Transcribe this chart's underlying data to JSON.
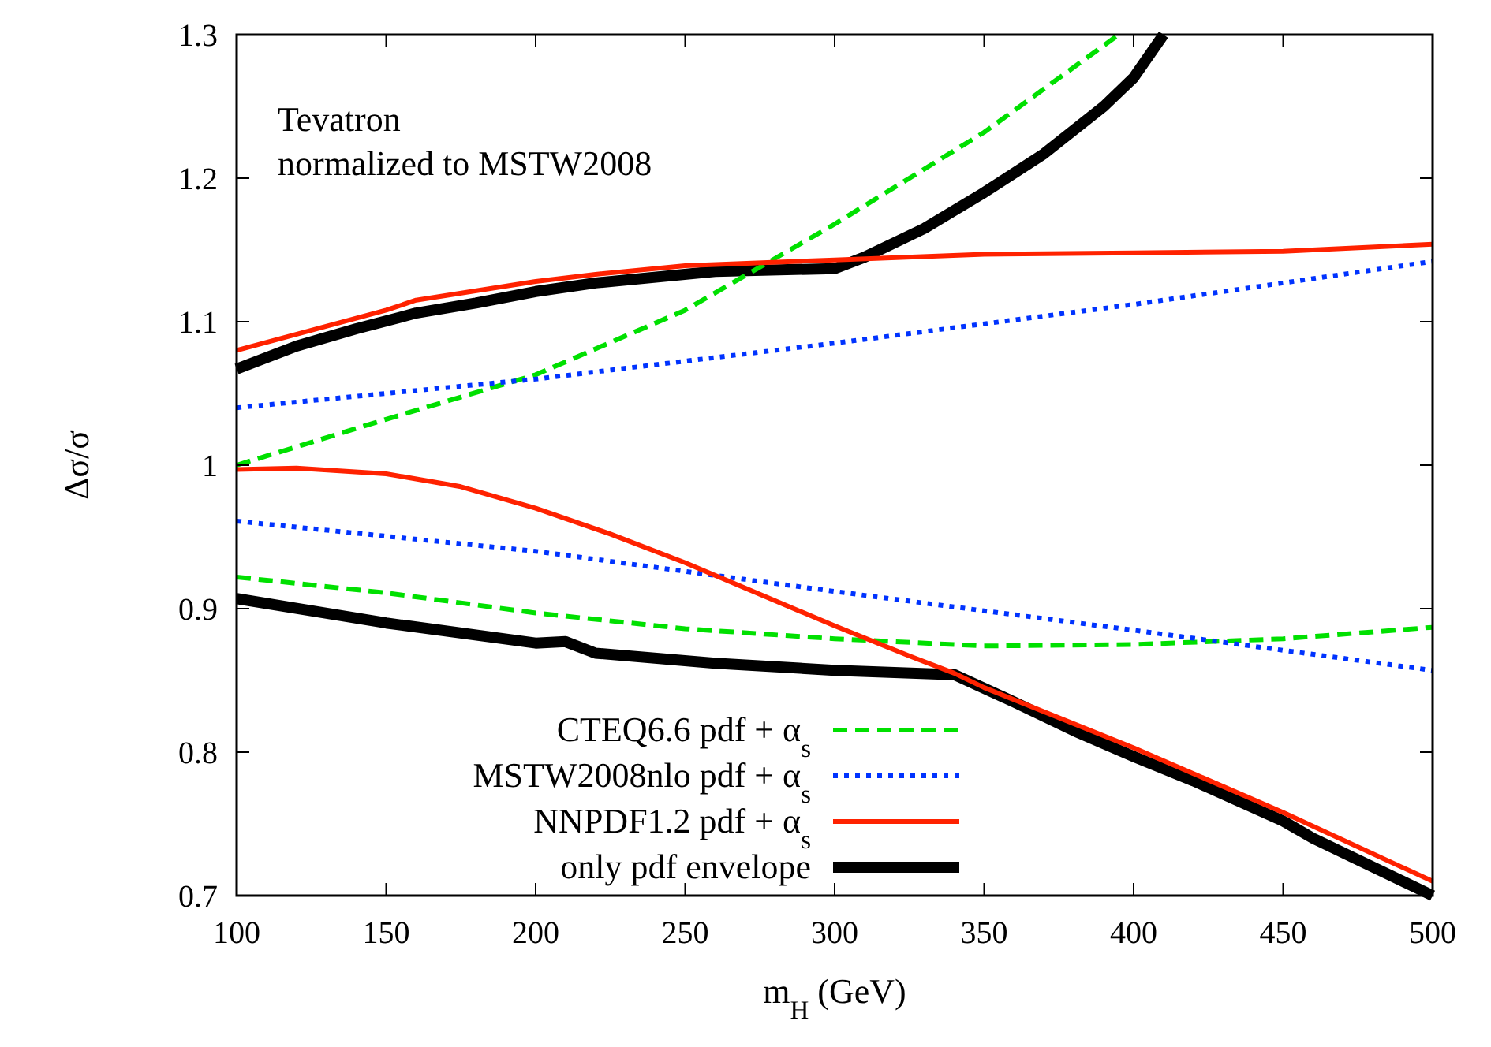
{
  "chart_data": {
    "type": "line",
    "xlabel": "m$_{H}$ (GeV)",
    "ylabel": "Δσ/σ",
    "annotations": [
      "Tevatron",
      "normalized to MSTW2008"
    ],
    "xlim": [
      100,
      500
    ],
    "xticks": [
      100,
      150,
      200,
      250,
      300,
      350,
      400,
      450,
      500
    ],
    "ylim": [
      0.7,
      1.3
    ],
    "yticks": [
      0.7,
      0.8,
      0.9,
      1,
      1.1,
      1.2,
      1.3
    ],
    "grid": false,
    "legend": "bottom",
    "marker": "none",
    "series": [
      {
        "name": "CTEQ6.6 pdf + α$_{s}$",
        "color": "#00e000",
        "line_style": "dashed",
        "x": [
          100,
          150,
          200,
          250,
          300,
          350,
          395
        ],
        "values": [
          1.0,
          1.032,
          1.063,
          1.108,
          1.168,
          1.232,
          1.3
        ]
      },
      {
        "color": "#00e000",
        "line_style": "dashed",
        "x": [
          100,
          150,
          200,
          250,
          300,
          350,
          400,
          450,
          500
        ],
        "values": [
          0.922,
          0.911,
          0.897,
          0.886,
          0.879,
          0.874,
          0.875,
          0.879,
          0.887
        ]
      },
      {
        "name": "MSTW2008nlo pdf + α$_{s}$",
        "color": "#0033ff",
        "line_style": "dotted",
        "x": [
          100,
          200,
          300,
          400,
          500
        ],
        "values": [
          1.04,
          1.06,
          1.085,
          1.112,
          1.142
        ]
      },
      {
        "color": "#0033ff",
        "line_style": "dotted",
        "x": [
          100,
          200,
          300,
          400,
          500
        ],
        "values": [
          0.961,
          0.94,
          0.912,
          0.885,
          0.857
        ]
      },
      {
        "name": "NNPDF1.2 pdf + α$_{s}$",
        "color": "#ff2200",
        "line_style": "solid",
        "x": [
          100,
          150,
          160,
          200,
          220,
          250,
          300,
          350,
          400,
          450,
          500
        ],
        "values": [
          1.08,
          1.108,
          1.115,
          1.128,
          1.133,
          1.139,
          1.143,
          1.147,
          1.148,
          1.149,
          1.154
        ]
      },
      {
        "color": "#ff2200",
        "line_style": "solid",
        "x": [
          100,
          120,
          150,
          175,
          200,
          225,
          250,
          300,
          325,
          340,
          350,
          400,
          450,
          500
        ],
        "values": [
          0.997,
          0.998,
          0.994,
          0.985,
          0.97,
          0.952,
          0.932,
          0.888,
          0.867,
          0.855,
          0.845,
          0.803,
          0.758,
          0.71
        ]
      },
      {
        "name": "only pdf envelope",
        "color": "#000000",
        "line_style": "solid",
        "x": [
          100,
          120,
          140,
          160,
          180,
          200,
          220,
          260,
          300,
          310,
          330,
          350,
          370,
          390,
          400,
          410
        ],
        "values": [
          1.067,
          1.083,
          1.095,
          1.106,
          1.113,
          1.121,
          1.127,
          1.135,
          1.137,
          1.145,
          1.165,
          1.19,
          1.217,
          1.25,
          1.27,
          1.3
        ]
      },
      {
        "color": "#000000",
        "line_style": "solid",
        "x": [
          100,
          150,
          200,
          210,
          220,
          260,
          300,
          340,
          360,
          380,
          400,
          420,
          450,
          460,
          500
        ],
        "values": [
          0.907,
          0.89,
          0.876,
          0.877,
          0.869,
          0.862,
          0.857,
          0.854,
          0.835,
          0.815,
          0.797,
          0.78,
          0.752,
          0.74,
          0.7
        ]
      }
    ]
  }
}
